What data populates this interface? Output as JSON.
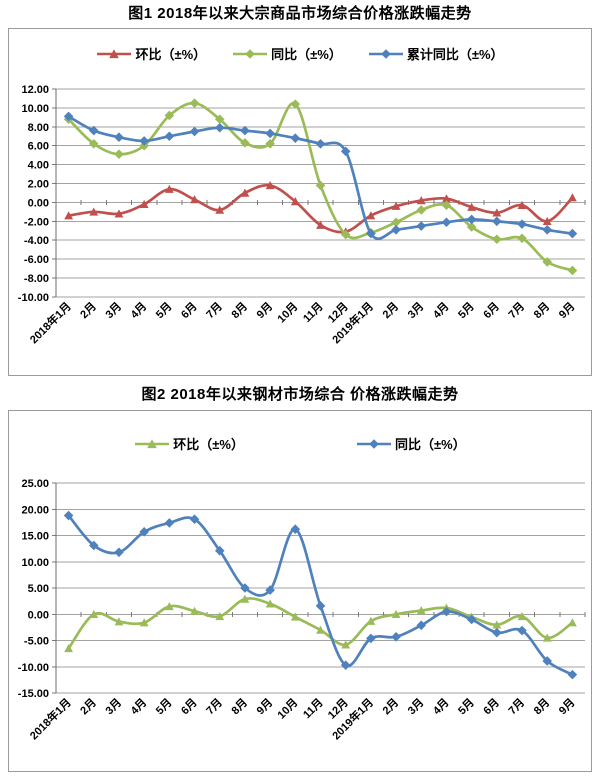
{
  "chart_data": [
    {
      "type": "line",
      "title": "图1 2018年以来大宗商品市场综合价格涨跌幅走势",
      "legend_position": "top-center",
      "grid": true,
      "ylim": [
        -10,
        12
      ],
      "ytick_step": 2,
      "y_ticks": [
        "12.00",
        "10.00",
        "8.00",
        "6.00",
        "4.00",
        "2.00",
        "0.00",
        "-2.00",
        "-4.00",
        "-6.00",
        "-8.00",
        "-10.00"
      ],
      "categories": [
        "2018年1月",
        "2月",
        "3月",
        "4月",
        "5月",
        "6月",
        "7月",
        "8月",
        "9月",
        "10月",
        "11月",
        "12月",
        "2019年1月",
        "2月",
        "3月",
        "4月",
        "5月",
        "6月",
        "7月",
        "8月",
        "9月"
      ],
      "series": [
        {
          "name": "环比（±%）",
          "color": "#C0504D",
          "marker": "triangle",
          "values": [
            -1.4,
            -1.0,
            -1.2,
            -0.2,
            1.4,
            0.3,
            -0.8,
            1.0,
            1.8,
            0.1,
            -2.4,
            -3.1,
            -1.4,
            -0.4,
            0.2,
            0.4,
            -0.5,
            -1.1,
            -0.3,
            -2.0,
            0.5
          ]
        },
        {
          "name": "同比（±%）",
          "color": "#9BBB59",
          "marker": "diamond",
          "values": [
            8.8,
            6.2,
            5.1,
            6.0,
            9.2,
            10.5,
            8.8,
            6.3,
            6.2,
            10.4,
            1.8,
            -3.4,
            -3.2,
            -2.1,
            -0.8,
            -0.3,
            -2.6,
            -3.9,
            -3.8,
            -6.3,
            -7.2
          ]
        },
        {
          "name": "累计同比（±%）",
          "color": "#4F81BD",
          "marker": "diamond",
          "values": [
            9.1,
            7.6,
            6.9,
            6.5,
            7.0,
            7.5,
            7.9,
            7.6,
            7.3,
            6.8,
            6.2,
            5.4,
            -3.3,
            -2.9,
            -2.5,
            -2.1,
            -1.8,
            -2.0,
            -2.3,
            -2.9,
            -3.3
          ]
        }
      ]
    },
    {
      "type": "line",
      "title": "图2 2018年以来钢材市场综合 价格涨跌幅走势",
      "legend_position": "top-center",
      "grid": true,
      "ylim": [
        -15,
        25
      ],
      "ytick_step": 5,
      "y_ticks": [
        "25.00",
        "20.00",
        "15.00",
        "10.00",
        "5.00",
        "0.00",
        "-5.00",
        "-10.00",
        "-15.00"
      ],
      "categories": [
        "2018年1月",
        "2月",
        "3月",
        "4月",
        "5月",
        "6月",
        "7月",
        "8月",
        "9月",
        "10月",
        "11月",
        "12月",
        "2019年1月",
        "2月",
        "3月",
        "4月",
        "5月",
        "6月",
        "7月",
        "8月",
        "9月"
      ],
      "series": [
        {
          "name": "环比（±%）",
          "color": "#9BBB59",
          "marker": "triangle",
          "values": [
            -6.5,
            0.0,
            -1.4,
            -1.6,
            1.5,
            0.6,
            -0.4,
            2.9,
            2.0,
            -0.5,
            -3.0,
            -5.8,
            -1.3,
            0.0,
            0.7,
            1.2,
            -0.5,
            -2.0,
            -0.4,
            -4.5,
            -1.6
          ]
        },
        {
          "name": "同比（±%）",
          "color": "#4F81BD",
          "marker": "diamond",
          "values": [
            18.8,
            13.1,
            11.8,
            15.7,
            17.4,
            18.1,
            12.1,
            5.0,
            4.6,
            16.2,
            1.6,
            -9.7,
            -4.6,
            -4.3,
            -2.1,
            0.5,
            -1.0,
            -3.5,
            -3.1,
            -8.9,
            -11.5
          ]
        }
      ]
    }
  ],
  "style": {
    "gridline_color": "#a3a3a3",
    "axis_color": "#6e6e6e",
    "tick_color": "#7a7a7a"
  }
}
